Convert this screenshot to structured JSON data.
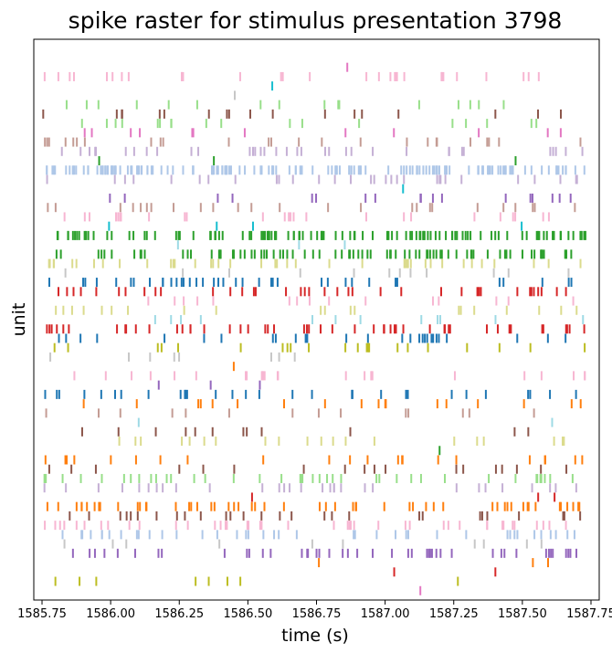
{
  "chart_data": {
    "type": "scatter",
    "marker": "vertical-tick",
    "title": "spike raster for stimulus presentation 3798",
    "xlabel": "time (s)",
    "ylabel": "unit",
    "xlim": [
      1585.72,
      1587.78
    ],
    "ylim": [
      0,
      60
    ],
    "x_ticks": [
      "1585.75",
      "1586.00",
      "1586.25",
      "1586.50",
      "1586.75",
      "1587.00",
      "1587.25",
      "1587.50",
      "1587.75"
    ],
    "y_ticks": [],
    "grid": false,
    "legend": "none",
    "t_start": 1585.75,
    "t_end": 1587.73,
    "units": [
      {
        "row": 1,
        "color": "#e377c2",
        "count": 1
      },
      {
        "row": 2,
        "color": "#bcbd22",
        "count": 8
      },
      {
        "row": 3,
        "color": "#d62728",
        "count": 2
      },
      {
        "row": 4,
        "color": "#ff7f0e",
        "count": 3
      },
      {
        "row": 5,
        "color": "#9467bd",
        "count": 45
      },
      {
        "row": 6,
        "color": "#c7c7c7",
        "count": 10
      },
      {
        "row": 7,
        "color": "#aec7e8",
        "count": 40
      },
      {
        "row": 8,
        "color": "#f7b6d2",
        "count": 42
      },
      {
        "row": 9,
        "color": "#8c564b",
        "count": 28
      },
      {
        "row": 10,
        "color": "#ff7f0e",
        "count": 55
      },
      {
        "row": 11,
        "color": "#d62728",
        "count": 3
      },
      {
        "row": 12,
        "color": "#c5b0d5",
        "count": 30
      },
      {
        "row": 13,
        "color": "#98df8a",
        "count": 40
      },
      {
        "row": 14,
        "color": "#8c564b",
        "count": 18
      },
      {
        "row": 15,
        "color": "#ff7f0e",
        "count": 22
      },
      {
        "row": 16,
        "color": "#2ca02c",
        "count": 1
      },
      {
        "row": 17,
        "color": "#dbdb8d",
        "count": 20
      },
      {
        "row": 18,
        "color": "#8c564b",
        "count": 12
      },
      {
        "row": 19,
        "color": "#9edae5",
        "count": 2
      },
      {
        "row": 20,
        "color": "#c49c94",
        "count": 14
      },
      {
        "row": 21,
        "color": "#ff7f0e",
        "count": 18
      },
      {
        "row": 22,
        "color": "#1f77b4",
        "count": 30
      },
      {
        "row": 23,
        "color": "#9467bd",
        "count": 3
      },
      {
        "row": 24,
        "color": "#f7b6d2",
        "count": 25
      },
      {
        "row": 25,
        "color": "#ff7f0e",
        "count": 1
      },
      {
        "row": 26,
        "color": "#c7c7c7",
        "count": 8
      },
      {
        "row": 27,
        "color": "#bcbd22",
        "count": 22
      },
      {
        "row": 28,
        "color": "#1f77b4",
        "count": 28
      },
      {
        "row": 29,
        "color": "#d62728",
        "count": 50
      },
      {
        "row": 30,
        "color": "#9edae5",
        "count": 12
      },
      {
        "row": 31,
        "color": "#dbdb8d",
        "count": 20
      },
      {
        "row": 32,
        "color": "#f7b6d2",
        "count": 15
      },
      {
        "row": 33,
        "color": "#d62728",
        "count": 38
      },
      {
        "row": 34,
        "color": "#1f77b4",
        "count": 38
      },
      {
        "row": 35,
        "color": "#c7c7c7",
        "count": 12
      },
      {
        "row": 36,
        "color": "#dbdb8d",
        "count": 40
      },
      {
        "row": 37,
        "color": "#2ca02c",
        "count": 80
      },
      {
        "row": 38,
        "color": "#9edae5",
        "count": 3
      },
      {
        "row": 39,
        "color": "#2ca02c",
        "count": 110
      },
      {
        "row": 40,
        "color": "#17becf",
        "count": 4
      },
      {
        "row": 41,
        "color": "#f7b6d2",
        "count": 25
      },
      {
        "row": 42,
        "color": "#c49c94",
        "count": 25
      },
      {
        "row": 43,
        "color": "#9467bd",
        "count": 18
      },
      {
        "row": 44,
        "color": "#17becf",
        "count": 1
      },
      {
        "row": 45,
        "color": "#c5b0d5",
        "count": 30
      },
      {
        "row": 46,
        "color": "#aec7e8",
        "count": 140
      },
      {
        "row": 47,
        "color": "#2ca02c",
        "count": 3
      },
      {
        "row": 48,
        "color": "#c5b0d5",
        "count": 35
      },
      {
        "row": 49,
        "color": "#c49c94",
        "count": 25
      },
      {
        "row": 50,
        "color": "#e377c2",
        "count": 12
      },
      {
        "row": 51,
        "color": "#98df8a",
        "count": 18
      },
      {
        "row": 52,
        "color": "#8c564b",
        "count": 18
      },
      {
        "row": 53,
        "color": "#98df8a",
        "count": 16
      },
      {
        "row": 54,
        "color": "#c7c7c7",
        "count": 1
      },
      {
        "row": 55,
        "color": "#17becf",
        "count": 1
      },
      {
        "row": 56,
        "color": "#f7b6d2",
        "count": 30
      },
      {
        "row": 57,
        "color": "#e377c2",
        "count": 1
      }
    ]
  }
}
